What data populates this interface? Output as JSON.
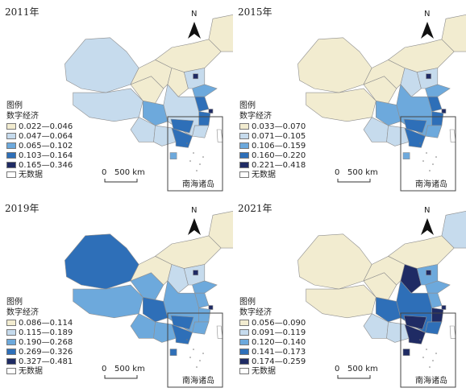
{
  "common": {
    "legend_title": "图例",
    "legend_subtitle": "数字经济",
    "nodata_label": "无数据",
    "scale_zero": "0",
    "scale_text": "500 km",
    "north_label": "N",
    "inset_label": "南海诸岛",
    "colors": [
      "#f2ecd0",
      "#c6dbed",
      "#6da9dc",
      "#2e6fb8",
      "#1f2b64",
      "#ffffff"
    ]
  },
  "panels": [
    {
      "year": "2011年",
      "legend": [
        "0.022—0.046",
        "0.047—0.064",
        "0.065—0.102",
        "0.103—0.164",
        "0.165—0.346"
      ]
    },
    {
      "year": "2015年",
      "legend": [
        "0.033—0.070",
        "0.071—0.105",
        "0.106—0.159",
        "0.160—0.220",
        "0.221—0.418"
      ]
    },
    {
      "year": "2019年",
      "legend": [
        "0.086—0.114",
        "0.115—0.189",
        "0.190—0.268",
        "0.269—0.326",
        "0.327—0.481"
      ]
    },
    {
      "year": "2021年",
      "legend": [
        "0.056—0.090",
        "0.091—0.119",
        "0.120—0.140",
        "0.141—0.173",
        "0.174—0.259"
      ]
    }
  ]
}
